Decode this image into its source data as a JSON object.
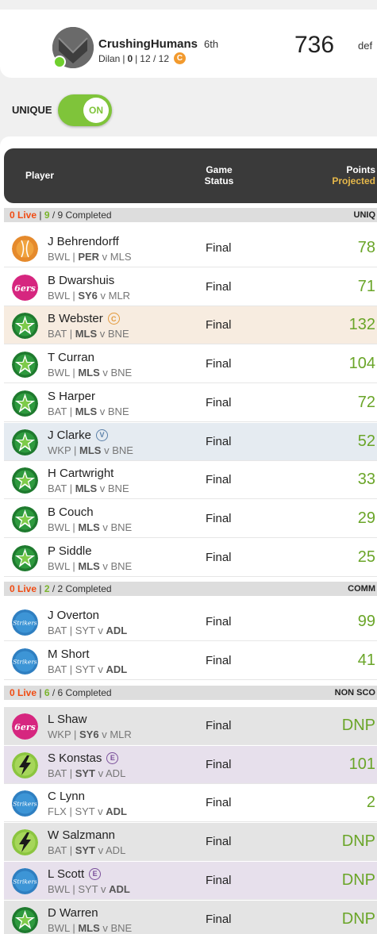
{
  "header": {
    "team_name": "CrushingHumans",
    "rank": "6th",
    "sub_user": "Dilan",
    "sub_sep1": "|",
    "sub_trades": "0",
    "sub_sep2": "|",
    "sub_players": "12 / 12",
    "coin_letter": "C",
    "score": "736",
    "score_suffix": "def"
  },
  "unique_toggle": {
    "label": "UNIQUE",
    "state": "ON"
  },
  "table_header": {
    "player": "Player",
    "status_1": "Game",
    "status_2": "Status",
    "points_1": "Points",
    "points_2": "Projected"
  },
  "sections": [
    {
      "live": "0 Live",
      "sep": "|",
      "completed": "9",
      "total": "/ 9 Completed",
      "category": "UNIQ"
    },
    {
      "live": "0 Live",
      "sep": "|",
      "completed": "2",
      "total": "/ 2 Completed",
      "category": "COMM"
    },
    {
      "live": "0 Live",
      "sep": "|",
      "completed": "6",
      "total": "/ 6 Completed",
      "category": "NON SCO"
    }
  ],
  "rows": [
    {
      "name": "J Behrendorff",
      "role": "BWL",
      "team": "PER",
      "opp": "MLS",
      "bold_side": "team",
      "status": "Final",
      "points": "78",
      "logo": "cricket-ball-icon"
    },
    {
      "name": "B Dwarshuis",
      "role": "BWL",
      "team": "SY6",
      "opp": "MLR",
      "bold_side": "team",
      "status": "Final",
      "points": "71",
      "logo": "sixers-logo-icon"
    },
    {
      "name": "B Webster",
      "role": "BAT",
      "team": "MLS",
      "opp": "BNE",
      "bold_side": "team",
      "status": "Final",
      "points": "132",
      "badge": "C",
      "logo": "stars-logo-icon"
    },
    {
      "name": "T Curran",
      "role": "BWL",
      "team": "MLS",
      "opp": "BNE",
      "bold_side": "team",
      "status": "Final",
      "points": "104",
      "logo": "stars-logo-icon"
    },
    {
      "name": "S Harper",
      "role": "BAT",
      "team": "MLS",
      "opp": "BNE",
      "bold_side": "team",
      "status": "Final",
      "points": "72",
      "logo": "stars-logo-icon"
    },
    {
      "name": "J Clarke",
      "role": "WKP",
      "team": "MLS",
      "opp": "BNE",
      "bold_side": "team",
      "status": "Final",
      "points": "52",
      "badge": "V",
      "logo": "stars-logo-icon"
    },
    {
      "name": "H Cartwright",
      "role": "BAT",
      "team": "MLS",
      "opp": "BNE",
      "bold_side": "team",
      "status": "Final",
      "points": "33",
      "logo": "stars-logo-icon"
    },
    {
      "name": "B Couch",
      "role": "BWL",
      "team": "MLS",
      "opp": "BNE",
      "bold_side": "team",
      "status": "Final",
      "points": "29",
      "logo": "stars-logo-icon"
    },
    {
      "name": "P Siddle",
      "role": "BWL",
      "team": "MLS",
      "opp": "BNE",
      "bold_side": "team",
      "status": "Final",
      "points": "25",
      "logo": "stars-logo-icon"
    },
    {
      "name": "J Overton",
      "role": "BAT",
      "team": "SYT",
      "opp": "ADL",
      "bold_side": "opp",
      "status": "Final",
      "points": "99",
      "logo": "strikers-logo-icon"
    },
    {
      "name": "M Short",
      "role": "BAT",
      "team": "SYT",
      "opp": "ADL",
      "bold_side": "opp",
      "status": "Final",
      "points": "41",
      "logo": "strikers-logo-icon"
    },
    {
      "name": "L Shaw",
      "role": "WKP",
      "team": "SY6",
      "opp": "MLR",
      "bold_side": "team",
      "status": "Final",
      "points": "DNP",
      "logo": "sixers-logo-icon"
    },
    {
      "name": "S Konstas",
      "role": "BAT",
      "team": "SYT",
      "opp": "ADL",
      "bold_side": "team",
      "status": "Final",
      "points": "101",
      "badge": "E",
      "logo": "thunder-logo-icon"
    },
    {
      "name": "C Lynn",
      "role": "FLX",
      "team": "SYT",
      "opp": "ADL",
      "bold_side": "opp",
      "status": "Final",
      "points": "2",
      "logo": "strikers-logo-icon"
    },
    {
      "name": "W Salzmann",
      "role": "BAT",
      "team": "SYT",
      "opp": "ADL",
      "bold_side": "team",
      "status": "Final",
      "points": "DNP",
      "logo": "thunder-logo-icon"
    },
    {
      "name": "L Scott",
      "role": "BWL",
      "team": "SYT",
      "opp": "ADL",
      "bold_side": "opp",
      "status": "Final",
      "points": "DNP",
      "badge": "E",
      "logo": "strikers-logo-icon"
    },
    {
      "name": "D Warren",
      "role": "BWL",
      "team": "MLS",
      "opp": "BNE",
      "bold_side": "team",
      "status": "Final",
      "points": "DNP",
      "logo": "stars-logo-icon"
    }
  ],
  "colors": {
    "accent_green": "#7fc43a",
    "live_orange": "#f04b12",
    "points_green": "#6aa528",
    "header_dark": "#3a3a3a",
    "projected_gold": "#e6b84a"
  }
}
